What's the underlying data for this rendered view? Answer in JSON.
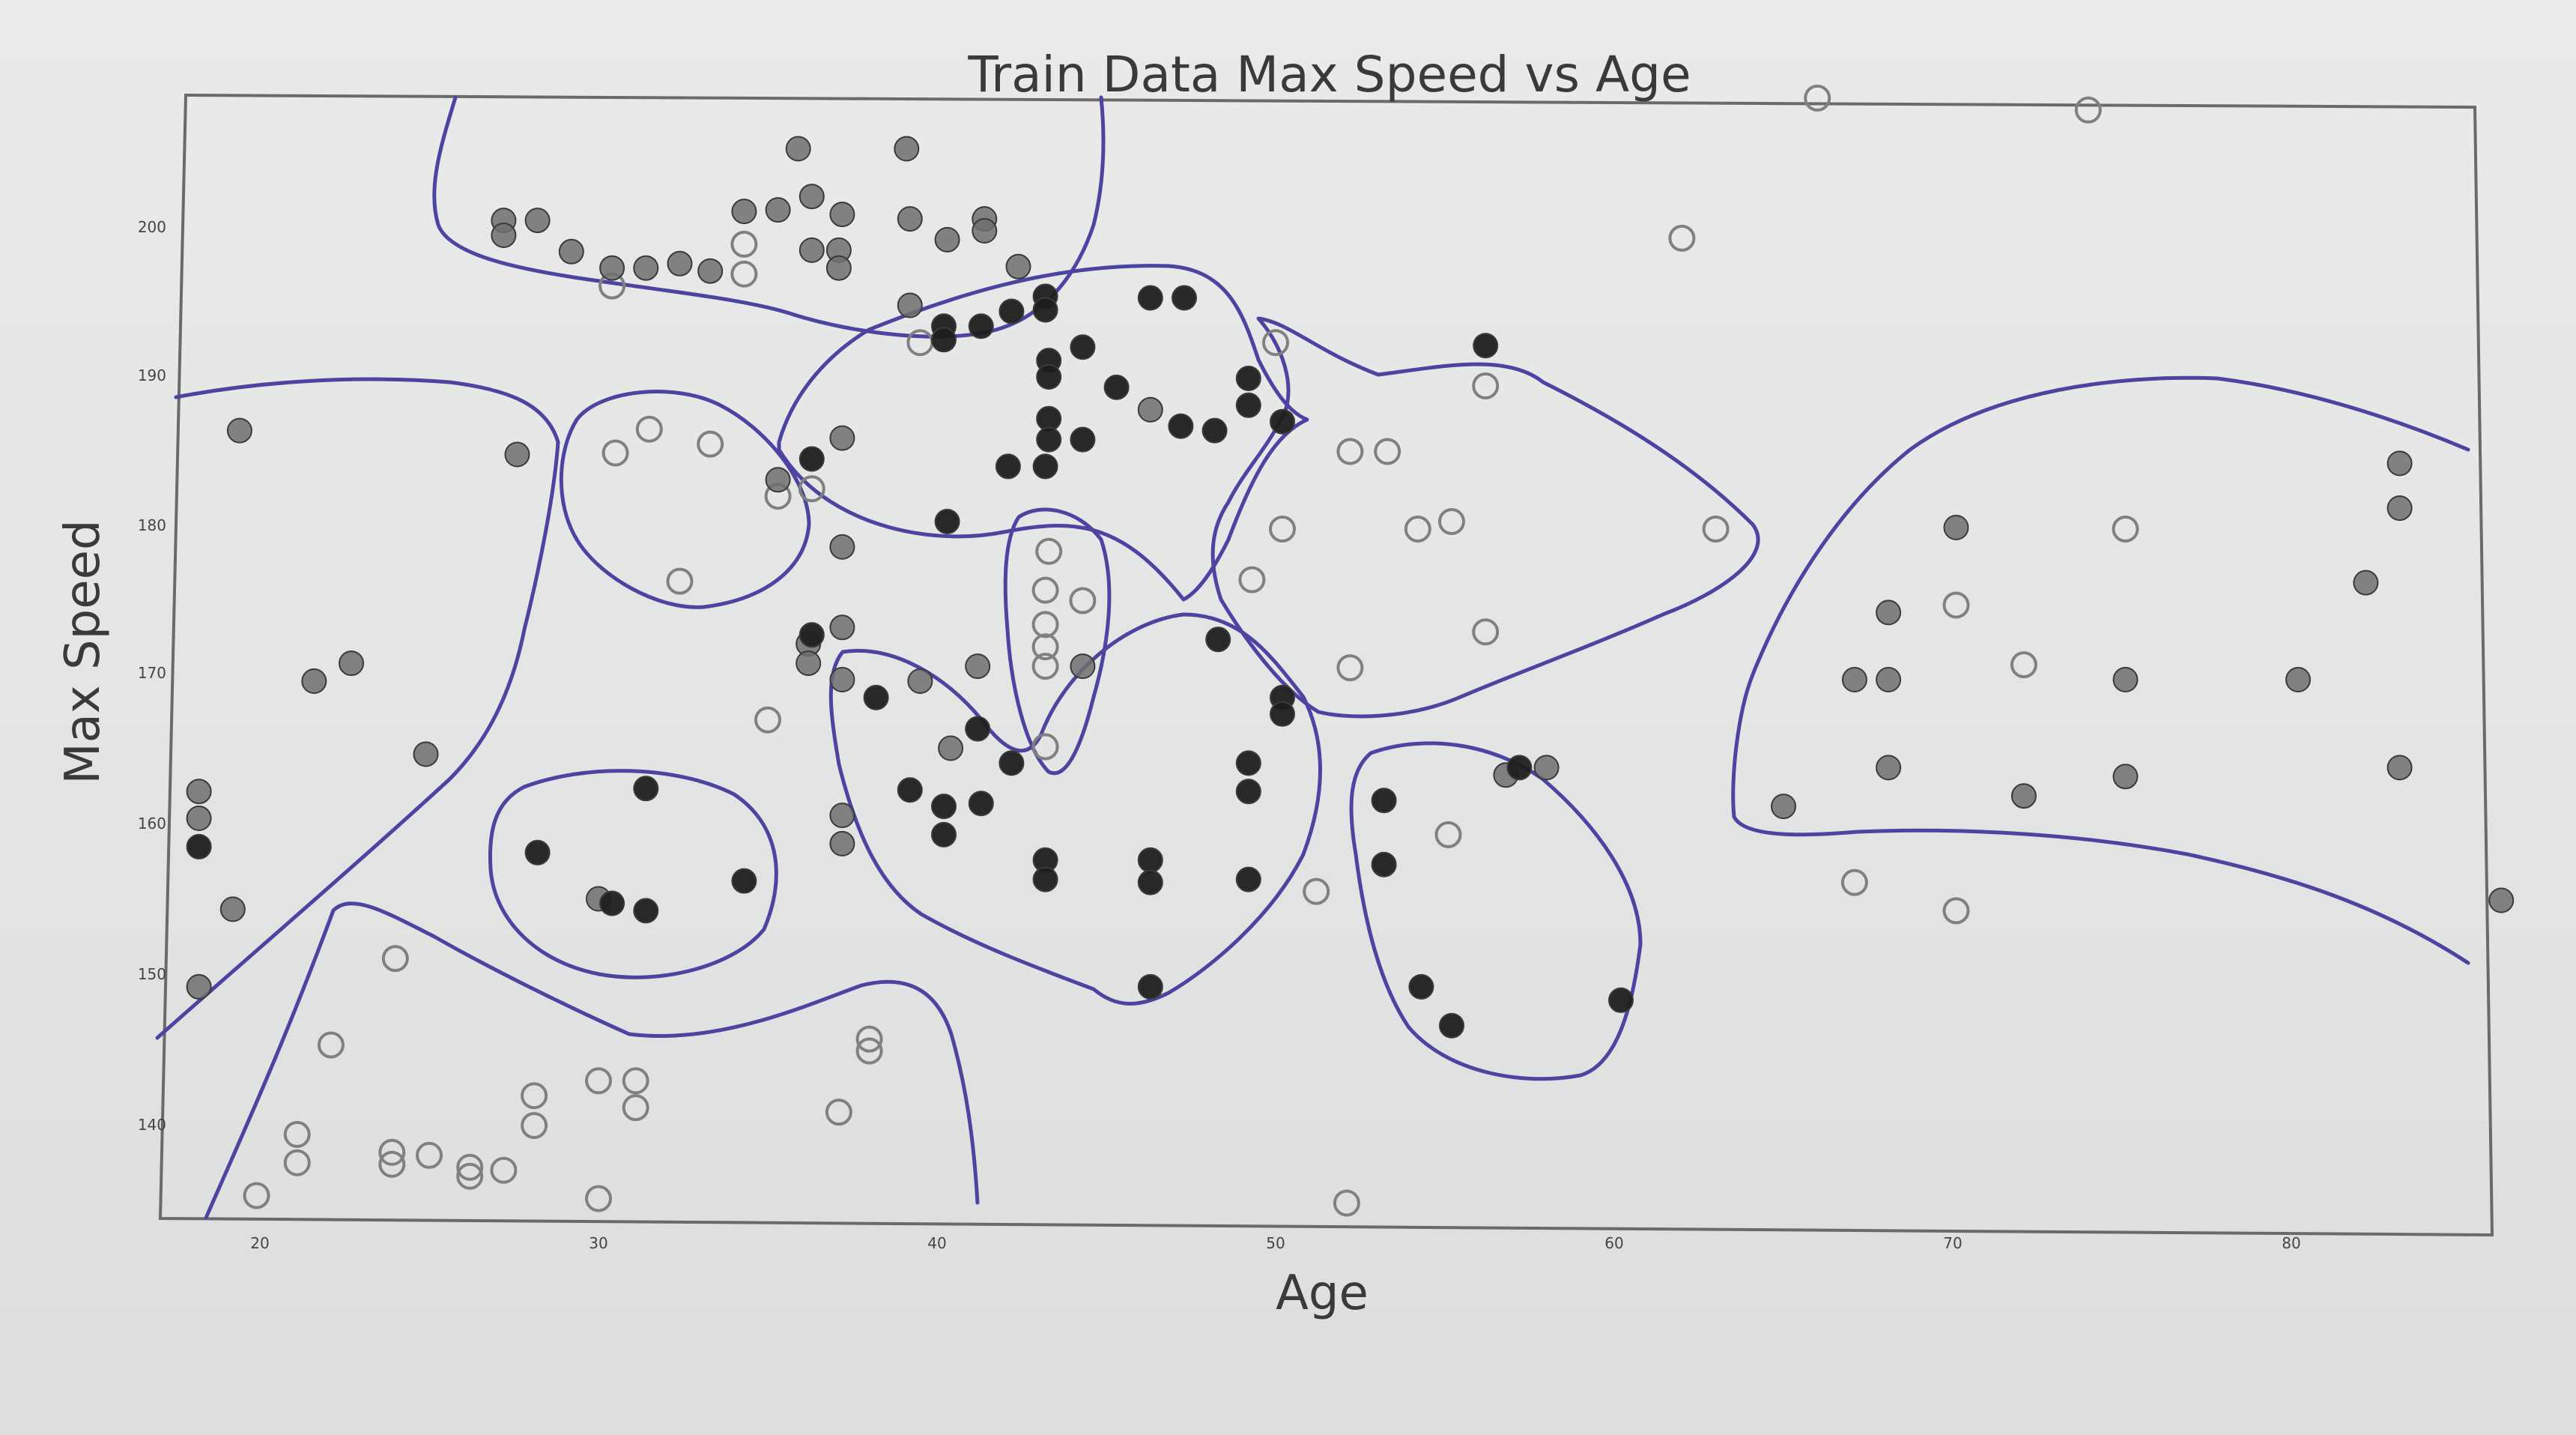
{
  "chart_data": {
    "type": "scatter",
    "title": "Train Data Max Speed vs Age",
    "xlabel": "Age",
    "ylabel": "Max Speed",
    "xlim": [
      17.0,
      86.2
    ],
    "ylim": [
      133.8,
      209.5
    ],
    "x_ticks": [
      "20",
      "30",
      "40",
      "50",
      "60",
      "70",
      "80"
    ],
    "y_ticks": [
      "140",
      "150",
      "160",
      "170",
      "180",
      "190",
      "200"
    ],
    "grid": false,
    "legend": "none",
    "series": [
      {
        "style": "hollow",
        "color": "#808080",
        "points": [
          [
            66,
            208.8
          ],
          [
            74,
            208
          ],
          [
            62,
            199.4
          ],
          [
            30.4,
            196.2
          ],
          [
            34.3,
            199
          ],
          [
            34.3,
            197
          ],
          [
            39.5,
            192.4
          ],
          [
            50,
            192.4
          ],
          [
            30.5,
            185
          ],
          [
            31.5,
            186.6
          ],
          [
            33.3,
            185.6
          ],
          [
            35.3,
            182.1
          ],
          [
            36.3,
            182.6
          ],
          [
            32.4,
            176.4
          ],
          [
            43.3,
            178.4
          ],
          [
            43.2,
            175.8
          ],
          [
            43.2,
            173.5
          ],
          [
            43.2,
            172
          ],
          [
            44.3,
            175.1
          ],
          [
            43.2,
            170.7
          ],
          [
            43.2,
            165.3
          ],
          [
            35,
            167.1
          ],
          [
            52.2,
            185.1
          ],
          [
            53.3,
            185.1
          ],
          [
            50.2,
            179.9
          ],
          [
            54.2,
            179.9
          ],
          [
            55.2,
            180.4
          ],
          [
            56.2,
            189.5
          ],
          [
            49.3,
            176.5
          ],
          [
            63,
            179.9
          ],
          [
            56.2,
            173
          ],
          [
            52.2,
            170.6
          ],
          [
            51.2,
            155.6
          ],
          [
            55.1,
            159.4
          ],
          [
            75.1,
            179.9
          ],
          [
            70.1,
            174.8
          ],
          [
            72.1,
            170.8
          ],
          [
            67.1,
            156.2
          ],
          [
            70.1,
            154.3
          ],
          [
            24,
            151.1
          ],
          [
            22.1,
            145.3
          ],
          [
            21.1,
            139.3
          ],
          [
            21.1,
            137.4
          ],
          [
            23.9,
            137.3
          ],
          [
            23.9,
            138.1
          ],
          [
            25,
            137.9
          ],
          [
            26.2,
            136.5
          ],
          [
            26.2,
            137.1
          ],
          [
            27.2,
            136.9
          ],
          [
            19.9,
            135.2
          ],
          [
            28.1,
            141.9
          ],
          [
            28.1,
            139.9
          ],
          [
            30,
            142.9
          ],
          [
            31.1,
            142.9
          ],
          [
            31.1,
            141.1
          ],
          [
            30,
            135
          ],
          [
            38,
            145.7
          ],
          [
            38,
            144.9
          ],
          [
            37.1,
            140.8
          ],
          [
            52.1,
            134.7
          ]
        ]
      },
      {
        "style": "gray",
        "color": "#6f6f6f",
        "points": [
          [
            35.9,
            205.4
          ],
          [
            39.1,
            205.4
          ],
          [
            27.2,
            200.6
          ],
          [
            28.2,
            200.6
          ],
          [
            27.2,
            199.6
          ],
          [
            29.2,
            198.5
          ],
          [
            30.4,
            197.4
          ],
          [
            31.4,
            197.4
          ],
          [
            32.4,
            197.7
          ],
          [
            33.3,
            197.2
          ],
          [
            34.3,
            201.2
          ],
          [
            35.3,
            201.3
          ],
          [
            36.3,
            202.2
          ],
          [
            37.2,
            201
          ],
          [
            37.1,
            198.6
          ],
          [
            37.1,
            197.4
          ],
          [
            36.3,
            198.6
          ],
          [
            39.2,
            200.7
          ],
          [
            40.3,
            199.3
          ],
          [
            41.4,
            200.7
          ],
          [
            41.4,
            199.9
          ],
          [
            42.4,
            197.5
          ],
          [
            39.2,
            194.9
          ],
          [
            35.3,
            183.2
          ],
          [
            37.2,
            186
          ],
          [
            46.3,
            187.9
          ],
          [
            37.2,
            178.7
          ],
          [
            37.2,
            173.3
          ],
          [
            36.2,
            172.2
          ],
          [
            37.2,
            169.8
          ],
          [
            36.2,
            170.9
          ],
          [
            37.2,
            160.7
          ],
          [
            37.2,
            158.8
          ],
          [
            40.4,
            165.2
          ],
          [
            41.2,
            170.7
          ],
          [
            44.3,
            170.7
          ],
          [
            39.5,
            169.7
          ],
          [
            19.4,
            186.5
          ],
          [
            27.6,
            184.9
          ],
          [
            22.7,
            170.9
          ],
          [
            21.6,
            169.7
          ],
          [
            24.9,
            164.8
          ],
          [
            18.2,
            162.3
          ],
          [
            18.2,
            160.5
          ],
          [
            19.2,
            154.4
          ],
          [
            18.2,
            149.2
          ],
          [
            30,
            155.1
          ],
          [
            58,
            163.9
          ],
          [
            56.8,
            163.4
          ],
          [
            67.1,
            169.8
          ],
          [
            68.1,
            169.8
          ],
          [
            68.1,
            174.3
          ],
          [
            70.1,
            180
          ],
          [
            68.1,
            163.9
          ],
          [
            65,
            161.3
          ],
          [
            72.1,
            162
          ],
          [
            75.1,
            169.8
          ],
          [
            75.1,
            163.3
          ],
          [
            80.2,
            169.8
          ],
          [
            82.2,
            176.3
          ],
          [
            83.2,
            184.3
          ],
          [
            83.2,
            181.3
          ],
          [
            83.2,
            163.9
          ],
          [
            86.2,
            155
          ]
        ]
      },
      {
        "style": "black",
        "color": "#1e1e1e",
        "points": [
          [
            40.2,
            193.5
          ],
          [
            40.2,
            192.6
          ],
          [
            41.3,
            193.5
          ],
          [
            42.2,
            194.5
          ],
          [
            43.2,
            195.5
          ],
          [
            43.2,
            194.6
          ],
          [
            46.3,
            195.4
          ],
          [
            47.3,
            195.4
          ],
          [
            43.3,
            191.2
          ],
          [
            43.3,
            190.1
          ],
          [
            44.3,
            192.1
          ],
          [
            45.3,
            189.4
          ],
          [
            43.3,
            187.3
          ],
          [
            43.3,
            185.9
          ],
          [
            42.1,
            184.1
          ],
          [
            43.2,
            184.1
          ],
          [
            44.3,
            185.9
          ],
          [
            47.2,
            186.8
          ],
          [
            48.2,
            186.5
          ],
          [
            49.2,
            190
          ],
          [
            49.2,
            188.2
          ],
          [
            50.2,
            187.1
          ],
          [
            56.2,
            192.2
          ],
          [
            36.3,
            184.6
          ],
          [
            40.3,
            180.4
          ],
          [
            38.2,
            168.6
          ],
          [
            41.2,
            166.5
          ],
          [
            42.2,
            164.2
          ],
          [
            36.3,
            172.8
          ],
          [
            39.2,
            162.4
          ],
          [
            40.2,
            161.3
          ],
          [
            40.2,
            159.4
          ],
          [
            41.3,
            161.5
          ],
          [
            43.2,
            157.7
          ],
          [
            43.2,
            156.4
          ],
          [
            46.3,
            157.7
          ],
          [
            46.3,
            156.2
          ],
          [
            46.3,
            149.2
          ],
          [
            48.3,
            172.5
          ],
          [
            50.2,
            168.6
          ],
          [
            50.2,
            167.5
          ],
          [
            49.2,
            164.2
          ],
          [
            49.2,
            162.3
          ],
          [
            49.2,
            156.4
          ],
          [
            53.2,
            161.7
          ],
          [
            53.2,
            157.4
          ],
          [
            54.3,
            149.2
          ],
          [
            55.2,
            146.6
          ],
          [
            57.2,
            163.9
          ],
          [
            60.2,
            148.3
          ],
          [
            28.2,
            158.2
          ],
          [
            30.4,
            154.8
          ],
          [
            31.4,
            154.3
          ],
          [
            31.4,
            162.5
          ],
          [
            34.3,
            156.3
          ],
          [
            18.2,
            158.6
          ]
        ]
      }
    ],
    "annotation_outline_color": "#4b44a0"
  }
}
